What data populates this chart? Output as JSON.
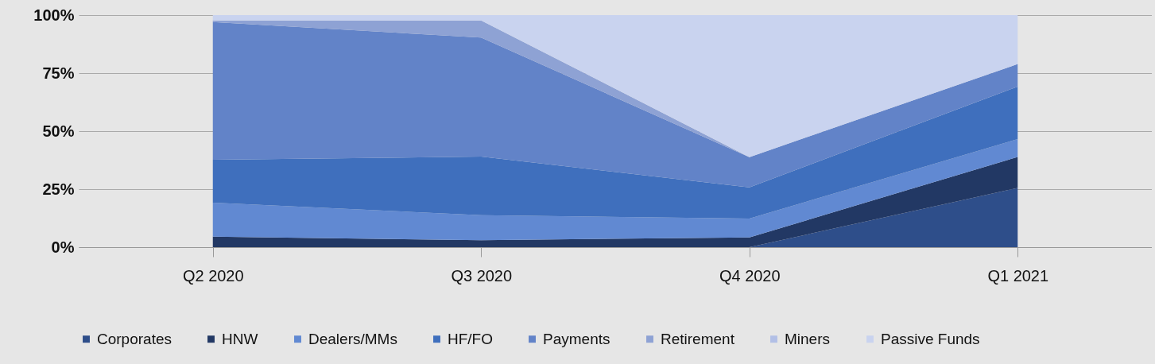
{
  "chart_data": {
    "type": "area",
    "stacked": true,
    "categories": [
      "Q2 2020",
      "Q3 2020",
      "Q4 2020",
      "Q1 2021"
    ],
    "series": [
      {
        "name": "Corporates",
        "color": "#2e4e8a",
        "values": [
          0,
          0,
          0,
          25.5
        ]
      },
      {
        "name": "HNW",
        "color": "#223864",
        "values": [
          4.5,
          3.0,
          4.2,
          13.4
        ]
      },
      {
        "name": "Dealers/MMs",
        "color": "#6189d2",
        "values": [
          14.7,
          10.8,
          8.1,
          7.7
        ]
      },
      {
        "name": "HF/FO",
        "color": "#3f6fbd",
        "values": [
          18.5,
          25.2,
          13.5,
          22.6
        ]
      },
      {
        "name": "Payments",
        "color": "#6283c8",
        "values": [
          59.3,
          51.3,
          13.0,
          9.7
        ]
      },
      {
        "name": "Retirement",
        "color": "#8ea2d4",
        "values": [
          0.7,
          7.4,
          0,
          0
        ]
      },
      {
        "name": "Miners",
        "color": "#b2bfe6",
        "values": [
          null,
          null,
          null,
          null
        ]
      },
      {
        "name": "Passive Funds",
        "color": "#c9d3ef",
        "values": [
          2.3,
          2.3,
          61.2,
          21.1
        ]
      }
    ],
    "ylim": [
      0,
      100
    ],
    "yticks": [
      {
        "value": 0,
        "label": "0%"
      },
      {
        "value": 25,
        "label": "25%"
      },
      {
        "value": 50,
        "label": "50%"
      },
      {
        "value": 75,
        "label": "75%"
      },
      {
        "value": 100,
        "label": "100%"
      }
    ],
    "grid": "y",
    "legend": "bottom"
  }
}
